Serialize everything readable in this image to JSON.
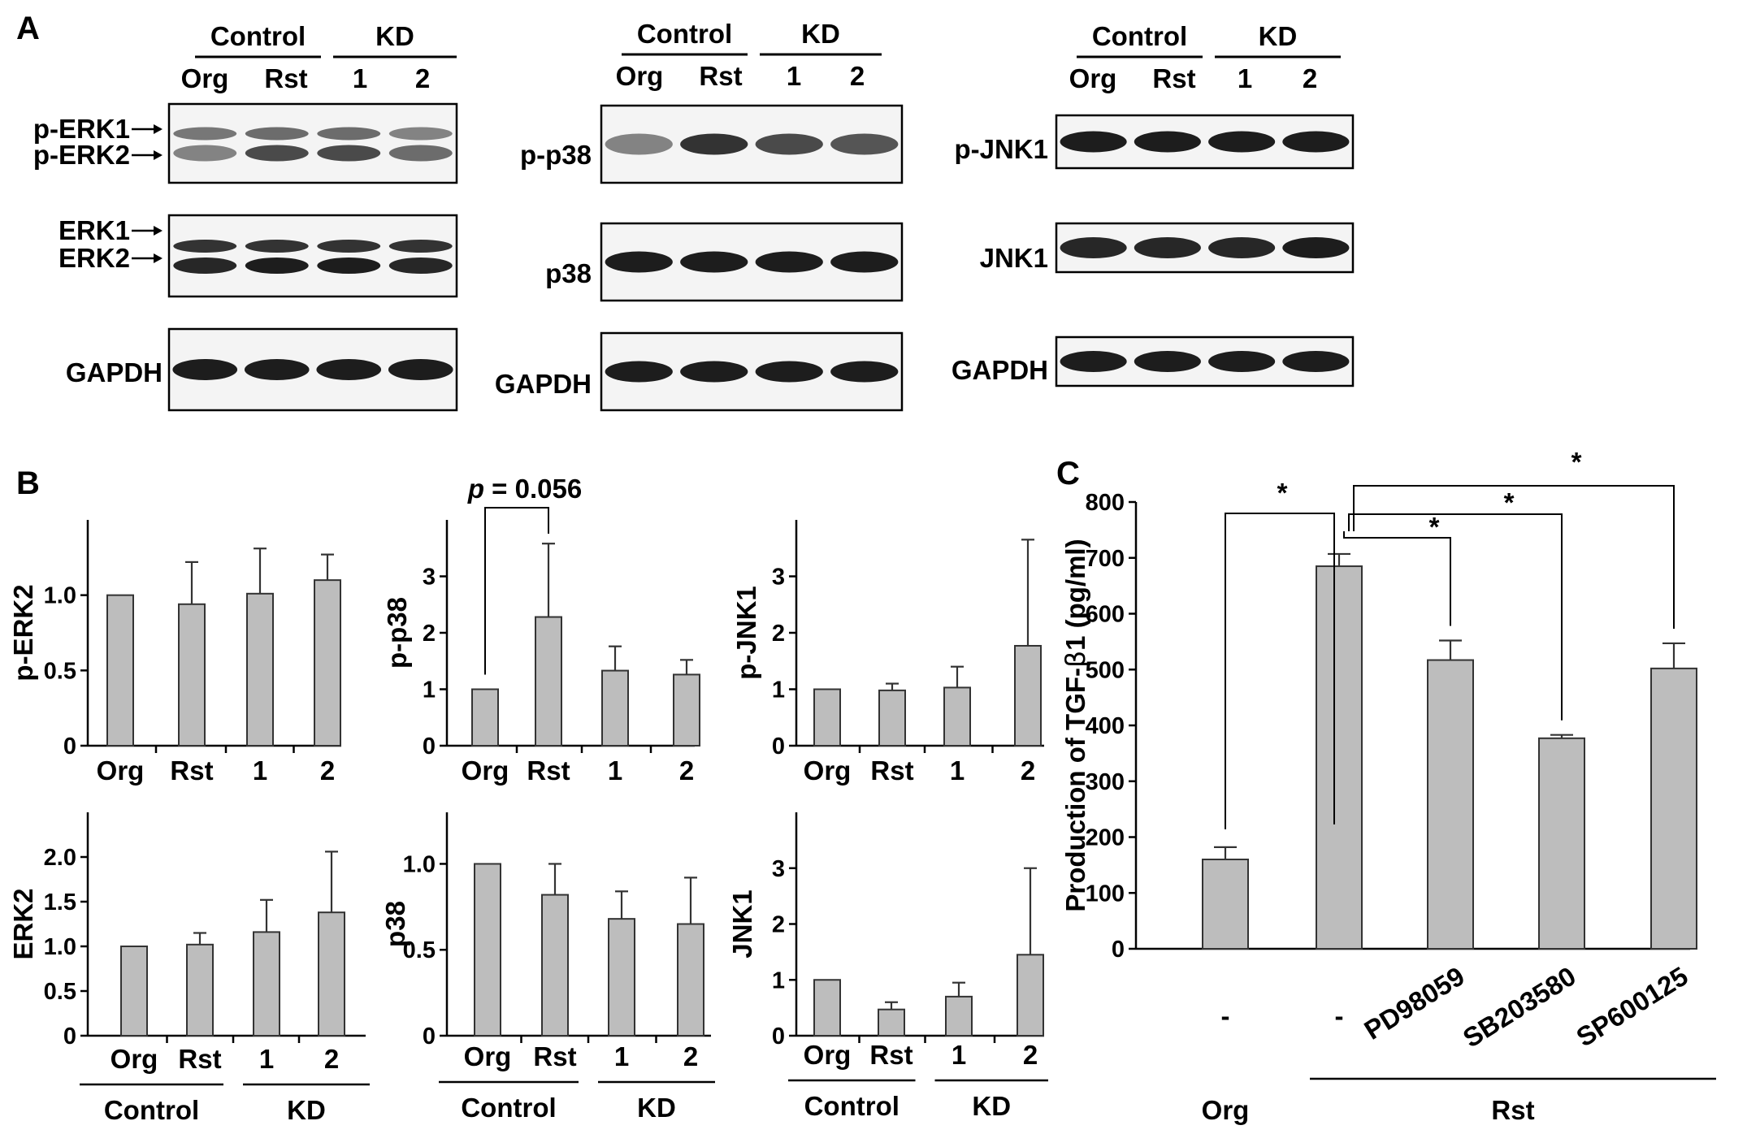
{
  "panels": {
    "a": "A",
    "b": "B",
    "c": "C"
  },
  "blots": [
    {
      "group1": "Control",
      "group2": "KD",
      "lanes": [
        "Org",
        "Rst",
        "1",
        "2"
      ],
      "rows": [
        {
          "labels": [
            "p-ERK1",
            "p-ERK2"
          ],
          "double": true,
          "intensity": [
            [
              0.55,
              0.5
            ],
            [
              0.6,
              0.75
            ],
            [
              0.6,
              0.75
            ],
            [
              0.5,
              0.6
            ]
          ]
        },
        {
          "labels": [
            "ERK1",
            "ERK2"
          ],
          "double": true,
          "intensity": [
            [
              0.85,
              0.9
            ],
            [
              0.85,
              0.95
            ],
            [
              0.85,
              0.95
            ],
            [
              0.85,
              0.9
            ]
          ]
        },
        {
          "labels": [
            "GAPDH"
          ],
          "double": false,
          "intensity": [
            0.95,
            0.95,
            0.95,
            0.95
          ]
        }
      ]
    },
    {
      "group1": "Control",
      "group2": "KD",
      "lanes": [
        "Org",
        "Rst",
        "1",
        "2"
      ],
      "rows": [
        {
          "labels": [
            "p-p38"
          ],
          "double": false,
          "intensity": [
            0.5,
            0.85,
            0.75,
            0.7
          ]
        },
        {
          "labels": [
            "p38"
          ],
          "double": false,
          "intensity": [
            0.95,
            0.95,
            0.95,
            0.95
          ]
        },
        {
          "labels": [
            "GAPDH"
          ],
          "double": false,
          "intensity": [
            0.95,
            0.95,
            0.95,
            0.95
          ]
        }
      ]
    },
    {
      "group1": "Control",
      "group2": "KD",
      "lanes": [
        "Org",
        "Rst",
        "1",
        "2"
      ],
      "rows": [
        {
          "labels": [
            "p-JNK1"
          ],
          "double": false,
          "intensity": [
            0.95,
            0.95,
            0.95,
            0.95
          ]
        },
        {
          "labels": [
            "JNK1"
          ],
          "double": false,
          "intensity": [
            0.9,
            0.9,
            0.9,
            0.95
          ]
        },
        {
          "labels": [
            "GAPDH"
          ],
          "double": false,
          "intensity": [
            0.95,
            0.95,
            0.95,
            0.95
          ]
        }
      ]
    }
  ],
  "chart_data": [
    {
      "type": "bar",
      "categories": [
        "Org",
        "Rst",
        "1",
        "2"
      ],
      "values": [
        1.0,
        0.94,
        1.01,
        1.1
      ],
      "errors": [
        0.0,
        0.28,
        0.3,
        0.17
      ],
      "ylabel": "p-ERK2",
      "ylim": [
        0,
        1.5
      ],
      "yticks": [
        0,
        0.5,
        1.0
      ],
      "ytick_labels": [
        "0",
        "0.5",
        "1.0"
      ]
    },
    {
      "type": "bar",
      "categories": [
        "Org",
        "Rst",
        "1",
        "2"
      ],
      "values": [
        1.0,
        2.28,
        1.33,
        1.26
      ],
      "errors": [
        0.0,
        1.3,
        0.43,
        0.26
      ],
      "ylabel": "p-p38",
      "ylim": [
        0,
        4
      ],
      "yticks": [
        0,
        1,
        2,
        3
      ],
      "ytick_labels": [
        "0",
        "1",
        "2",
        "3"
      ],
      "annotation": {
        "p_label": "p",
        "text": " = 0.056",
        "from": 0,
        "to": 1
      }
    },
    {
      "type": "bar",
      "categories": [
        "Org",
        "Rst",
        "1",
        "2"
      ],
      "values": [
        1.0,
        0.98,
        1.03,
        1.77
      ],
      "errors": [
        0.0,
        0.12,
        0.37,
        1.88
      ],
      "ylabel": "p-JNK1",
      "ylim": [
        0,
        4
      ],
      "yticks": [
        0,
        1,
        2,
        3
      ],
      "ytick_labels": [
        "0",
        "1",
        "2",
        "3"
      ]
    },
    {
      "type": "bar",
      "categories": [
        "Org",
        "Rst",
        "1",
        "2"
      ],
      "values": [
        1.0,
        1.02,
        1.16,
        1.38
      ],
      "errors": [
        0.0,
        0.13,
        0.36,
        0.68
      ],
      "ylabel": "ERK2",
      "ylim": [
        0,
        2.5
      ],
      "yticks": [
        0,
        0.5,
        1.0,
        1.5,
        2.0
      ],
      "ytick_labels": [
        "0",
        "0.5",
        "1.0",
        "1.5",
        "2.0"
      ],
      "group_labels": [
        "Control",
        "KD"
      ]
    },
    {
      "type": "bar",
      "categories": [
        "Org",
        "Rst",
        "1",
        "2"
      ],
      "values": [
        1.0,
        0.82,
        0.68,
        0.65
      ],
      "errors": [
        0.0,
        0.18,
        0.16,
        0.27
      ],
      "ylabel": "p38",
      "ylim": [
        0,
        1.3
      ],
      "yticks": [
        0,
        0.5,
        1.0
      ],
      "ytick_labels": [
        "0",
        "0.5",
        "1.0"
      ],
      "group_labels": [
        "Control",
        "KD"
      ]
    },
    {
      "type": "bar",
      "categories": [
        "Org",
        "Rst",
        "1",
        "2"
      ],
      "values": [
        1.0,
        0.47,
        0.7,
        1.45
      ],
      "errors": [
        0.0,
        0.13,
        0.25,
        1.55
      ],
      "ylabel": "JNK1",
      "ylim": [
        0,
        4
      ],
      "yticks": [
        0,
        1,
        2,
        3
      ],
      "ytick_labels": [
        "0",
        "1",
        "2",
        "3"
      ],
      "group_labels": [
        "Control",
        "KD"
      ]
    },
    {
      "type": "bar",
      "categories": [
        "-",
        "-",
        "PD98059",
        "SB203580",
        "SP600125"
      ],
      "values": [
        160,
        685,
        517,
        377,
        502
      ],
      "errors": [
        22,
        22,
        35,
        6,
        45
      ],
      "ylabel_prefix": "Production of TGF-",
      "ylabel_greek": "β",
      "ylabel_suffix": "1 (pg/ml)",
      "ylim": [
        0,
        800
      ],
      "yticks": [
        0,
        100,
        200,
        300,
        400,
        500,
        600,
        700,
        800
      ],
      "ytick_labels": [
        "0",
        "100",
        "200",
        "300",
        "400",
        "500",
        "600",
        "700",
        "800"
      ],
      "group_labels": [
        "Org",
        "Rst"
      ],
      "significance": [
        {
          "from": 0,
          "to": 1,
          "text": "*"
        },
        {
          "from": 1,
          "to": 2,
          "text": "*"
        },
        {
          "from": 1,
          "to": 3,
          "text": "*"
        },
        {
          "from": 1,
          "to": 4,
          "text": "*"
        }
      ]
    }
  ],
  "style": {
    "bar_fill": "#bdbdbd",
    "bar_stroke": "#333333",
    "band_color": "#111111",
    "blot_bg": "#f4f4f4"
  }
}
